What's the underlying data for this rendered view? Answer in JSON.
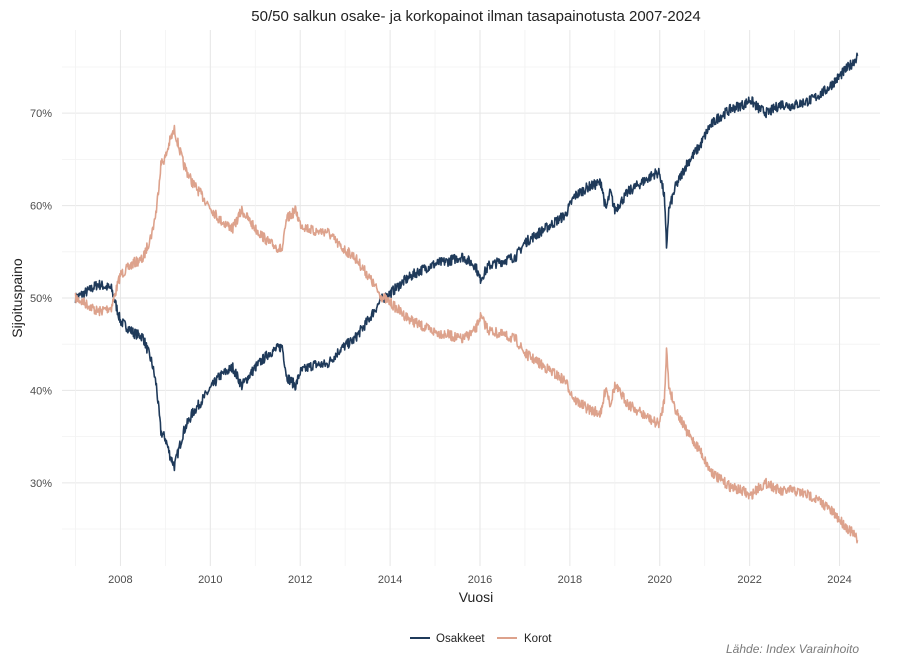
{
  "chart_data": {
    "type": "line",
    "title": "50/50 salkun osake- ja korkopainot ilman tasapainotusta 2007-2024",
    "xlabel": "Vuosi",
    "ylabel": "Sijoituspaino",
    "source": "Lähde: Index Varainhoito",
    "xlim": [
      2006.7,
      2024.9
    ],
    "ylim": [
      21,
      79
    ],
    "x_ticks": [
      2008,
      2010,
      2012,
      2014,
      2016,
      2018,
      2020,
      2022,
      2024
    ],
    "x_tick_labels": [
      "2008",
      "2010",
      "2012",
      "2014",
      "2016",
      "2018",
      "2020",
      "2022",
      "2024"
    ],
    "y_ticks": [
      30,
      40,
      50,
      60,
      70
    ],
    "y_tick_labels": [
      "30%",
      "40%",
      "50%",
      "60%",
      "70%"
    ],
    "legend_position": "bottom",
    "x": [
      2007.0,
      2007.3,
      2007.5,
      2007.8,
      2008.0,
      2008.3,
      2008.5,
      2008.7,
      2008.8,
      2008.9,
      2009.0,
      2009.1,
      2009.2,
      2009.4,
      2009.6,
      2009.9,
      2010.2,
      2010.5,
      2010.7,
      2011.0,
      2011.3,
      2011.6,
      2011.7,
      2011.9,
      2012.0,
      2012.3,
      2012.6,
      2012.9,
      2013.2,
      2013.5,
      2013.8,
      2014.0,
      2014.3,
      2014.6,
      2014.9,
      2015.1,
      2015.3,
      2015.6,
      2015.9,
      2016.0,
      2016.2,
      2016.5,
      2016.8,
      2017.0,
      2017.3,
      2017.6,
      2017.9,
      2018.1,
      2018.4,
      2018.7,
      2018.8,
      2018.9,
      2019.0,
      2019.3,
      2019.6,
      2019.9,
      2020.0,
      2020.1,
      2020.15,
      2020.2,
      2020.35,
      2020.6,
      2020.9,
      2021.1,
      2021.3,
      2021.6,
      2021.9,
      2022.0,
      2022.2,
      2022.4,
      2022.7,
      2022.9,
      2023.1,
      2023.4,
      2023.7,
      2023.9,
      2024.1,
      2024.3,
      2024.4
    ],
    "series": [
      {
        "name": "Osakkeet",
        "color": "#1f3a5a",
        "values": [
          50.0,
          50.8,
          51.5,
          51.0,
          47.5,
          46.2,
          45.8,
          43.0,
          40.5,
          35.5,
          34.8,
          33.0,
          31.8,
          35.5,
          37.5,
          39.5,
          41.5,
          42.5,
          40.5,
          42.5,
          44.0,
          44.8,
          41.5,
          40.5,
          42.0,
          42.8,
          42.8,
          44.5,
          45.5,
          47.5,
          49.8,
          50.5,
          51.8,
          52.8,
          53.5,
          53.8,
          54.0,
          54.5,
          53.5,
          52.0,
          53.5,
          54.0,
          54.5,
          56.0,
          57.0,
          58.0,
          59.0,
          61.0,
          62.0,
          62.5,
          59.5,
          61.5,
          59.5,
          61.5,
          62.5,
          63.5,
          63.5,
          61.0,
          55.5,
          59.5,
          62.0,
          64.5,
          66.5,
          68.5,
          69.5,
          70.5,
          71.0,
          71.5,
          70.5,
          70.0,
          71.0,
          70.8,
          71.0,
          71.5,
          72.5,
          73.5,
          74.5,
          75.5,
          76.2
        ]
      },
      {
        "name": "Korot",
        "color": "#dda28c",
        "values": [
          50.0,
          49.2,
          48.5,
          49.0,
          52.5,
          53.8,
          54.2,
          57.0,
          59.5,
          64.5,
          65.2,
          67.0,
          68.2,
          64.5,
          62.5,
          60.5,
          58.5,
          57.5,
          59.5,
          57.5,
          56.0,
          55.2,
          58.5,
          59.5,
          58.0,
          57.2,
          57.2,
          55.5,
          54.5,
          52.5,
          50.2,
          49.5,
          48.2,
          47.2,
          46.5,
          46.2,
          46.0,
          45.5,
          46.5,
          48.0,
          46.5,
          46.0,
          45.5,
          44.0,
          43.0,
          42.0,
          41.0,
          39.0,
          38.0,
          37.5,
          40.5,
          38.5,
          40.5,
          38.5,
          37.5,
          36.5,
          36.5,
          39.0,
          44.5,
          40.5,
          38.0,
          35.5,
          33.5,
          31.5,
          30.5,
          29.5,
          29.0,
          28.5,
          29.5,
          30.0,
          29.0,
          29.2,
          29.0,
          28.5,
          27.5,
          26.5,
          25.5,
          24.5,
          23.8
        ]
      }
    ]
  }
}
